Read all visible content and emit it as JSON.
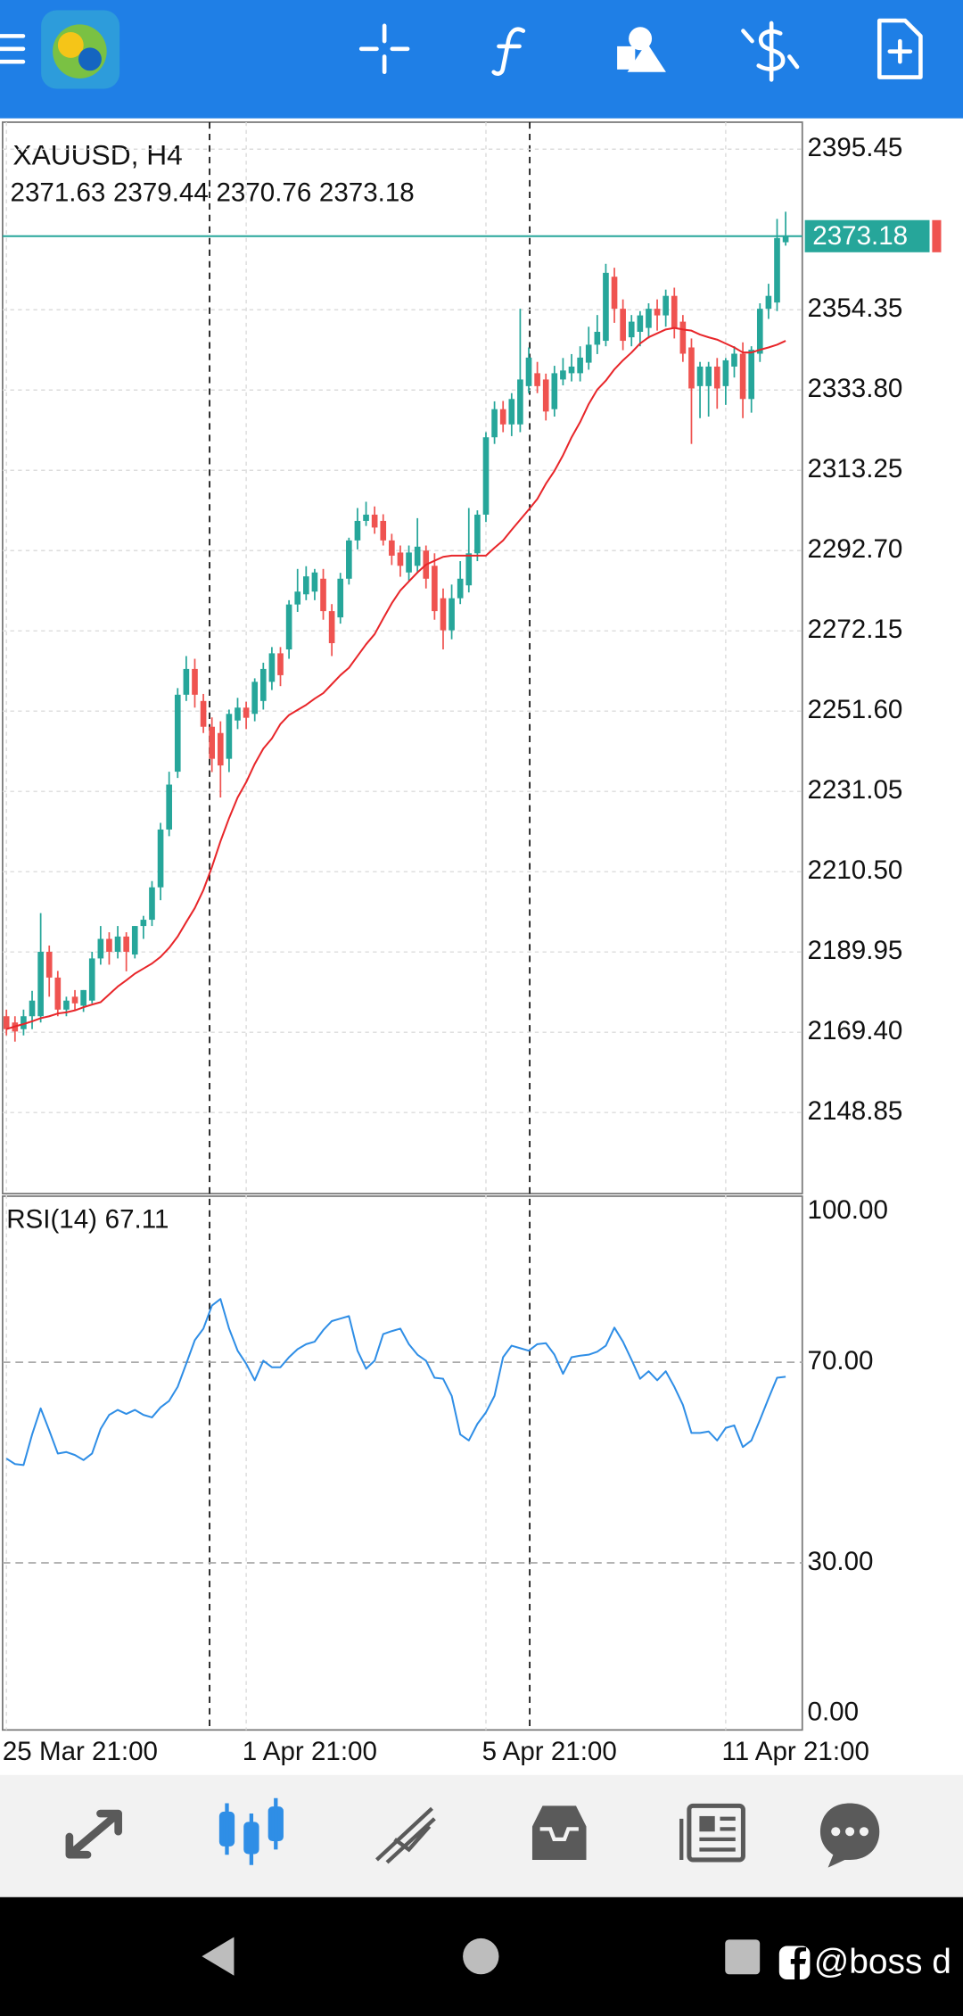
{
  "chart_data": [
    {
      "type": "candlestick",
      "title": "XAUUSD, H4",
      "categories": [
        "25 Mar 21:00",
        null,
        null,
        null,
        null,
        null,
        null,
        null,
        null,
        null,
        null,
        null,
        null,
        null,
        null,
        null,
        null,
        null,
        null,
        null,
        null,
        null,
        null,
        null,
        null,
        null,
        null,
        null,
        "1 Apr 21:00",
        null,
        null,
        null,
        null,
        null,
        null,
        null,
        null,
        null,
        null,
        null,
        null,
        null,
        null,
        null,
        null,
        null,
        null,
        null,
        null,
        null,
        null,
        null,
        null,
        null,
        null,
        null,
        "5 Apr 21:00",
        null,
        null,
        null,
        null,
        null,
        null,
        null,
        null,
        null,
        null,
        null,
        null,
        null,
        null,
        null,
        null,
        null,
        null,
        null,
        null,
        null,
        null,
        null,
        null,
        null,
        null,
        null,
        "11 Apr 21:00",
        null,
        null,
        null,
        null,
        null,
        null,
        null
      ],
      "open": [
        2173.5,
        2171.9,
        2170.2,
        2173.5,
        2173.5,
        2190.0,
        2183.4,
        2175.2,
        2178.5,
        2176.2,
        2177.5,
        2188.3,
        2193.3,
        2190.0,
        2193.9,
        2189.3,
        2196.6,
        2198.2,
        2206.5,
        2221.3,
        2236.1,
        2255.8,
        2262.4,
        2254.2,
        2247.6,
        2246.0,
        2239.4,
        2249.2,
        2252.5,
        2250.9,
        2254.2,
        2259.1,
        2266.4,
        2267.4,
        2278.9,
        2281.5,
        2282.2,
        2285.5,
        2277.2,
        2275.6,
        2285.5,
        2295.3,
        2300.3,
        2301.9,
        2300.3,
        2295.3,
        2292.2,
        2287.1,
        2288.8,
        2292.7,
        2288.8,
        2280.5,
        2272.3,
        2280.5,
        2283.8,
        2292.0,
        2301.9,
        2321.7,
        2328.9,
        2325.0,
        2325.0,
        2334.8,
        2338.1,
        2336.5,
        2328.9,
        2336.5,
        2338.1,
        2338.1,
        2340.8,
        2345.4,
        2346.4,
        2362.8,
        2354.6,
        2347.3,
        2348.7,
        2349.7,
        2354.6,
        2352.9,
        2357.9,
        2351.3,
        2344.7,
        2334.8,
        2334.8,
        2339.8,
        2334.8,
        2339.8,
        2343.1,
        2331.5,
        2343.1,
        2354.6,
        2356.2,
        2371.63
      ],
      "high": [
        2175.2,
        2173.5,
        2175.2,
        2180.0,
        2199.9,
        2191.6,
        2185.1,
        2178.5,
        2180.2,
        2180.2,
        2190.0,
        2196.6,
        2195.0,
        2196.6,
        2195.0,
        2196.6,
        2199.2,
        2208.1,
        2223.0,
        2236.1,
        2257.5,
        2265.7,
        2265.0,
        2256.0,
        2250.0,
        2249.0,
        2252.0,
        2255.0,
        2254.0,
        2260.0,
        2264.0,
        2268.0,
        2268.0,
        2280.0,
        2288.0,
        2288.7,
        2288.0,
        2288.0,
        2279.0,
        2287.0,
        2296.0,
        2303.6,
        2305.2,
        2304.0,
        2302.0,
        2297.0,
        2294.0,
        2294.0,
        2301.0,
        2294.0,
        2292.0,
        2283.0,
        2284.0,
        2290.0,
        2303.6,
        2303.0,
        2323.0,
        2330.9,
        2331.0,
        2333.0,
        2354.6,
        2344.7,
        2341.0,
        2338.0,
        2340.0,
        2342.0,
        2343.0,
        2345.0,
        2350.0,
        2353.0,
        2366.1,
        2365.1,
        2357.0,
        2353.0,
        2354.0,
        2356.0,
        2357.0,
        2359.5,
        2360.0,
        2353.0,
        2347.0,
        2341.0,
        2341.0,
        2342.0,
        2342.0,
        2345.0,
        2346.0,
        2345.0,
        2356.0,
        2361.0,
        2377.6,
        2379.44
      ],
      "low": [
        2168.6,
        2167.0,
        2168.6,
        2170.2,
        2171.9,
        2178.5,
        2173.5,
        2173.5,
        2175.2,
        2174.6,
        2176.8,
        2186.7,
        2186.7,
        2188.3,
        2185.0,
        2188.3,
        2193.3,
        2196.6,
        2203.2,
        2219.6,
        2234.5,
        2254.2,
        2252.5,
        2246.0,
        2236.0,
        2229.5,
        2236.0,
        2247.0,
        2247.0,
        2249.0,
        2252.0,
        2257.0,
        2258.0,
        2265.0,
        2277.0,
        2280.0,
        2280.0,
        2275.0,
        2265.7,
        2274.0,
        2284.0,
        2293.0,
        2299.0,
        2297.0,
        2294.0,
        2289.0,
        2286.0,
        2285.0,
        2287.0,
        2283.0,
        2275.0,
        2267.4,
        2270.0,
        2279.0,
        2282.0,
        2290.0,
        2300.0,
        2320.0,
        2323.0,
        2322.0,
        2323.0,
        2333.0,
        2333.0,
        2326.0,
        2327.0,
        2335.0,
        2336.0,
        2336.0,
        2339.0,
        2343.0,
        2345.0,
        2351.0,
        2344.0,
        2345.0,
        2345.0,
        2347.0,
        2349.0,
        2350.0,
        2347.0,
        2341.0,
        2320.0,
        2326.6,
        2327.0,
        2329.0,
        2330.0,
        2337.0,
        2326.6,
        2328.0,
        2341.0,
        2352.0,
        2354.0,
        2370.76
      ],
      "close": [
        2170.2,
        2169.6,
        2173.5,
        2177.5,
        2190.0,
        2183.4,
        2175.2,
        2177.5,
        2176.8,
        2180.2,
        2188.3,
        2193.3,
        2190.0,
        2193.9,
        2190.0,
        2196.6,
        2198.2,
        2206.5,
        2221.3,
        2232.8,
        2255.8,
        2262.4,
        2255.8,
        2247.6,
        2239.4,
        2237.7,
        2250.9,
        2252.5,
        2249.9,
        2259.1,
        2262.4,
        2266.4,
        2260.8,
        2278.9,
        2282.2,
        2286.1,
        2287.1,
        2277.2,
        2269.0,
        2285.5,
        2295.3,
        2300.3,
        2301.9,
        2298.6,
        2295.3,
        2291.4,
        2288.8,
        2292.2,
        2293.7,
        2285.5,
        2277.2,
        2272.3,
        2280.5,
        2285.5,
        2292.0,
        2301.9,
        2321.7,
        2328.9,
        2325.0,
        2331.5,
        2336.5,
        2342.1,
        2334.8,
        2328.3,
        2338.1,
        2338.8,
        2339.8,
        2342.1,
        2345.4,
        2348.7,
        2363.8,
        2354.6,
        2346.4,
        2351.3,
        2352.9,
        2354.6,
        2352.9,
        2357.9,
        2349.7,
        2343.1,
        2334.2,
        2339.8,
        2339.8,
        2334.2,
        2341.4,
        2343.1,
        2331.5,
        2344.1,
        2354.6,
        2357.9,
        2372.7,
        2373.18
      ],
      "up_color": "#26a69a",
      "down_color": "#ef5350",
      "overlays": [
        {
          "type": "line",
          "color": "#e8262a",
          "values": [
            2170.2,
            2170.9,
            2171.5,
            2172.2,
            2173.0,
            2173.5,
            2174.2,
            2174.5,
            2175.0,
            2175.8,
            2176.5,
            2177.1,
            2179.1,
            2181.1,
            2182.7,
            2184.4,
            2185.7,
            2187.0,
            2188.7,
            2191.0,
            2193.9,
            2197.6,
            2201.2,
            2205.8,
            2211.7,
            2218.3,
            2224.2,
            2229.5,
            2233.4,
            2238.1,
            2242.0,
            2244.6,
            2248.3,
            2250.6,
            2251.9,
            2253.2,
            2254.8,
            2256.2,
            2258.5,
            2260.8,
            2262.7,
            2265.7,
            2268.7,
            2271.3,
            2275.3,
            2279.2,
            2282.5,
            2284.8,
            2287.1,
            2289.1,
            2290.1,
            2291.1,
            2291.4,
            2291.4,
            2291.4,
            2291.4,
            2291.4,
            2293.4,
            2295.3,
            2298.0,
            2300.6,
            2303.2,
            2305.9,
            2309.8,
            2313.1,
            2317.1,
            2321.7,
            2325.6,
            2330.2,
            2333.9,
            2336.2,
            2339.1,
            2341.4,
            2343.4,
            2345.7,
            2347.3,
            2348.3,
            2349.3,
            2349.7,
            2349.3,
            2349.0,
            2348.0,
            2347.3,
            2346.7,
            2345.7,
            2344.7,
            2343.4,
            2343.4,
            2344.1,
            2344.7,
            2345.4,
            2346.4
          ]
        }
      ],
      "last_price_color": "#26a69a",
      "ask_color": "#ef5350",
      "ylim": [
        2128.1,
        2402.36
      ],
      "yticks": [
        2395.45,
        2354.35,
        {
          "value": 2333.8,
          "label": "2333.80"
        },
        2313.25,
        {
          "value": 2292.7,
          "label": "2292.70"
        },
        2272.15,
        {
          "value": 2251.6,
          "label": "2251.60"
        },
        2231.05,
        {
          "value": 2210.5,
          "label": "2210.50"
        },
        2189.95,
        {
          "value": 2169.4,
          "label": "2169.40"
        },
        2148.85
      ],
      "grid": true
    },
    {
      "type": "line",
      "title": "RSI(14)",
      "color": "#2f8ee6",
      "values": [
        50.8,
        49.7,
        49.5,
        55.6,
        60.8,
        56.4,
        51.8,
        52.1,
        51.5,
        50.5,
        51.8,
        56.7,
        59.5,
        60.5,
        59.7,
        60.5,
        59.5,
        59.0,
        61.0,
        62.3,
        65.1,
        69.7,
        74.4,
        76.7,
        81.3,
        82.6,
        76.7,
        72.3,
        69.7,
        66.4,
        70.3,
        69.0,
        69.0,
        71.0,
        72.6,
        73.6,
        74.1,
        76.4,
        78.2,
        78.7,
        79.2,
        72.3,
        68.7,
        70.3,
        75.6,
        76.2,
        76.7,
        73.6,
        71.5,
        70.3,
        66.9,
        66.7,
        63.3,
        55.6,
        54.4,
        57.7,
        60.0,
        63.3,
        71.0,
        73.3,
        72.8,
        72.3,
        73.6,
        73.8,
        71.5,
        67.7,
        71.0,
        71.3,
        71.5,
        72.1,
        73.3,
        76.9,
        74.1,
        70.5,
        66.7,
        68.2,
        66.4,
        68.2,
        65.1,
        61.5,
        55.9,
        55.9,
        56.2,
        54.4,
        56.9,
        57.4,
        53.1,
        54.4,
        58.5,
        62.8,
        66.9,
        67.11
      ],
      "ylim": [
        -3.3,
        103.1
      ],
      "yticks": [
        {
          "value": 100,
          "label": "100.00"
        },
        {
          "value": 70,
          "label": "70.00"
        },
        {
          "value": 30,
          "label": "30.00"
        },
        {
          "value": 0,
          "label": "0.00"
        }
      ],
      "levels": [
        70,
        30
      ]
    }
  ],
  "system_bar": {
    "watermark": "@boss d"
  }
}
